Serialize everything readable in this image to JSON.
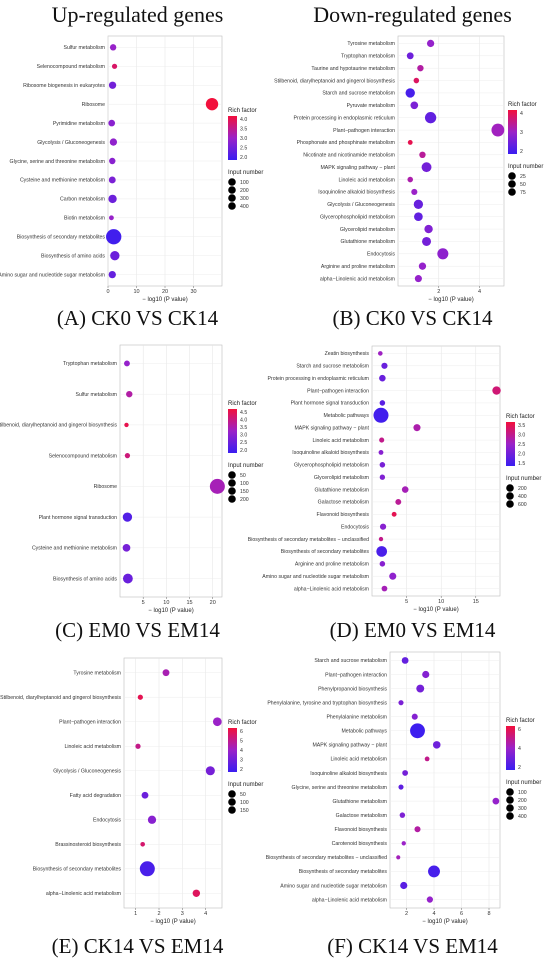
{
  "titles": {
    "left": "Up-regulated genes",
    "right": "Down-regulated genes"
  },
  "common": {
    "xlabel": "− log10 (P value)",
    "rich_legend_title": "Rich factor",
    "size_legend_title": "Input number",
    "colors": {
      "low": "#3a1ef0",
      "mid": "#9b22c8",
      "high": "#f2103c"
    }
  },
  "chart_data": [
    {
      "type": "scatter",
      "panel_label": "(A) CK0 VS CK14",
      "xlabel": "− log10 (P value)",
      "xlim": [
        0,
        40
      ],
      "xticks": [
        0,
        10,
        20,
        30
      ],
      "rich_range": [
        1.5,
        4.2
      ],
      "rich_ticks": [
        "4.0",
        "3.5",
        "3.0",
        "2.5",
        "2.0"
      ],
      "size_ticks": [
        100,
        200,
        300,
        400
      ],
      "size_max": 400,
      "categories": [
        "Sulfur metabolism",
        "Selenocompound metabolism",
        "Ribosome biogenesis in eukaryotes",
        "Ribosome",
        "Pyrimidine metabolism",
        "Glycolysis / Gluconeogenesis",
        "Glycine, serine and threonine metabolism",
        "Cysteine and methionine metabolism",
        "Carbon metabolism",
        "Biotin metabolism",
        "Biosynthesis of secondary metabolites",
        "Biosynthesis of amino acids",
        "Amino sugar and nucleotide sugar metabolism"
      ],
      "x": [
        1.8,
        2.3,
        1.6,
        36.5,
        1.3,
        1.9,
        1.5,
        1.5,
        1.6,
        1.2,
        2.0,
        2.4,
        1.5
      ],
      "rich": [
        2.8,
        3.8,
        2.3,
        4.2,
        2.6,
        2.7,
        2.6,
        2.4,
        2.2,
        2.8,
        1.6,
        2.2,
        2.1
      ],
      "count": [
        40,
        20,
        60,
        250,
        45,
        60,
        40,
        50,
        90,
        15,
        420,
        120,
        60
      ]
    },
    {
      "type": "scatter",
      "panel_label": "(B) CK0 VS CK14",
      "xlabel": "− log10 (P value)",
      "xlim": [
        0,
        5.2
      ],
      "xticks": [
        2,
        4
      ],
      "rich_range": [
        1.6,
        4.6
      ],
      "rich_ticks": [
        "4",
        "3",
        "2"
      ],
      "size_ticks": [
        25,
        50,
        75
      ],
      "size_max": 80,
      "categories": [
        "Tyrosine metabolism",
        "Tryptophan metabolism",
        "Taurine and hypotaurine metabolism",
        "Stilbenoid, diarylheptanoid and gingerol biosynthesis",
        "Starch and sucrose metabolism",
        "Pyruvate metabolism",
        "Protein processing in endoplasmic reticulum",
        "Plant−pathogen interaction",
        "Phosphonate and phosphinate metabolism",
        "Nicotinate and nicotinamide metabolism",
        "MAPK signaling pathway − plant",
        "Linoleic acid metabolism",
        "Isoquinoline alkaloid biosynthesis",
        "Glycolysis / Gluconeogenesis",
        "Glycerophospholipid metabolism",
        "Glycerolipid metabolism",
        "Glutathione metabolism",
        "Endocytosis",
        "Arginine and proline metabolism",
        "alpha−Linolenic acid metabolism"
      ],
      "x": [
        1.6,
        0.6,
        1.1,
        0.9,
        0.6,
        0.8,
        1.6,
        4.9,
        0.6,
        1.2,
        1.4,
        0.6,
        0.8,
        1.0,
        1.0,
        1.5,
        1.4,
        2.2,
        1.2,
        1.0
      ],
      "rich": [
        3.0,
        2.4,
        3.5,
        4.2,
        1.8,
        2.6,
        2.2,
        3.2,
        4.4,
        3.6,
        2.5,
        3.4,
        3.1,
        2.3,
        2.2,
        2.7,
        2.5,
        2.9,
        3.0,
        3.0
      ],
      "count": [
        12,
        10,
        8,
        5,
        25,
        14,
        40,
        55,
        3,
        8,
        28,
        5,
        7,
        24,
        20,
        18,
        22,
        38,
        12,
        11
      ]
    },
    {
      "type": "scatter",
      "panel_label": "(C) EM0 VS EM14",
      "xlabel": "− log10 (P value)",
      "xlim": [
        0,
        22
      ],
      "xticks": [
        5,
        10,
        15,
        20
      ],
      "rich_range": [
        1.5,
        4.7
      ],
      "rich_ticks": [
        "4.5",
        "4.0",
        "3.5",
        "3.0",
        "2.5",
        "2.0"
      ],
      "size_ticks": [
        50,
        100,
        150,
        200
      ],
      "size_max": 200,
      "categories": [
        "Tryptophan metabolism",
        "Sulfur metabolism",
        "Stilbenoid, diarylheptanoid and gingerol biosynthesis",
        "Selenocompound metabolism",
        "Ribosome",
        "Plant hormone signal transduction",
        "Cysteine and methionine metabolism",
        "Biosynthesis of amino acids"
      ],
      "x": [
        1.5,
        2.0,
        1.4,
        1.6,
        21.0,
        1.6,
        1.4,
        1.7
      ],
      "rich": [
        3.0,
        3.5,
        4.5,
        4.0,
        3.3,
        1.9,
        2.5,
        2.3
      ],
      "count": [
        15,
        20,
        5,
        10,
        200,
        60,
        35,
        70
      ]
    },
    {
      "type": "scatter",
      "panel_label": "(D) EM0 VS EM14",
      "xlabel": "− log10 (P value)",
      "xlim": [
        0,
        18.5
      ],
      "xticks": [
        5,
        10,
        15
      ],
      "rich_range": [
        1.2,
        3.7
      ],
      "rich_ticks": [
        "3.5",
        "3.0",
        "2.5",
        "2.0",
        "1.5"
      ],
      "size_ticks": [
        200,
        400,
        600
      ],
      "size_max": 650,
      "categories": [
        "Zeatin biosynthesis",
        "Starch and sucrose metabolism",
        "Protein processing in endoplasmic reticulum",
        "Plant−pathogen interaction",
        "Plant hormone signal transduction",
        "Metabolic pathways",
        "MAPK signaling pathway − plant",
        "Linoleic acid metabolism",
        "Isoquinoline alkaloid biosynthesis",
        "Glycerophospholipid metabolism",
        "Glycerolipid metabolism",
        "Glutathione metabolism",
        "Galactose metabolism",
        "Flavonoid biosynthesis",
        "Endocytosis",
        "Biosynthesis of secondary metabolites − unclassified",
        "Biosynthesis of secondary metabolites",
        "Arginine and proline metabolism",
        "Amino sugar and nucleotide sugar metabolism",
        "alpha−Linolenic acid metabolism"
      ],
      "x": [
        1.2,
        1.8,
        1.5,
        18.0,
        1.5,
        1.3,
        6.5,
        1.4,
        1.3,
        1.5,
        1.5,
        4.8,
        3.8,
        3.2,
        1.6,
        1.3,
        1.4,
        1.5,
        3.0,
        1.8
      ],
      "rich": [
        2.5,
        1.8,
        1.8,
        3.2,
        1.6,
        1.3,
        2.7,
        3.0,
        2.2,
        2.0,
        2.1,
        2.6,
        2.9,
        3.5,
        2.2,
        3.0,
        1.4,
        2.2,
        2.3,
        2.6
      ],
      "count": [
        20,
        60,
        70,
        150,
        40,
        650,
        90,
        30,
        25,
        40,
        35,
        70,
        50,
        25,
        60,
        15,
        280,
        40,
        90,
        45
      ]
    },
    {
      "type": "scatter",
      "panel_label": "(E) CK14 VS EM14",
      "xlabel": "− log10 (P value)",
      "xlim": [
        0.5,
        4.7
      ],
      "xticks": [
        1,
        2,
        3,
        4
      ],
      "rich_range": [
        1.2,
        6.4
      ],
      "rich_ticks": [
        "6",
        "5",
        "4",
        "3",
        "2"
      ],
      "size_ticks": [
        50,
        100,
        150
      ],
      "size_max": 160,
      "categories": [
        "Tyrosine metabolism",
        "Stilbenoid, diarylheptanoid and gingerol biosynthesis",
        "Plant−pathogen interaction",
        "Linoleic acid metabolism",
        "Glycolysis / Gluconeogenesis",
        "Fatty acid degradation",
        "Endocytosis",
        "Brassinosteroid biosynthesis",
        "Biosynthesis of secondary metabolites",
        "alpha−Linolenic acid metabolism"
      ],
      "x": [
        2.3,
        1.2,
        4.5,
        1.1,
        4.2,
        1.4,
        1.7,
        1.3,
        1.5,
        3.6
      ],
      "rich": [
        4.2,
        6.0,
        3.8,
        5.0,
        2.8,
        2.5,
        3.3,
        5.5,
        1.6,
        5.8
      ],
      "count": [
        20,
        8,
        40,
        8,
        45,
        20,
        35,
        5,
        160,
        25
      ]
    },
    {
      "type": "scatter",
      "panel_label": "(F) CK14 VS EM14",
      "xlabel": "− log10 (P value)",
      "xlim": [
        0.8,
        8.8
      ],
      "xticks": [
        2,
        4,
        6,
        8
      ],
      "rich_range": [
        1.2,
        7.2
      ],
      "rich_ticks": [
        "6",
        "4",
        "2"
      ],
      "size_ticks": [
        100,
        200,
        300,
        400
      ],
      "size_max": 420,
      "categories": [
        "Starch and sucrose metabolism",
        "Plant−pathogen interaction",
        "Phenylpropanoid biosynthesis",
        "Phenylalanine, tyrosine and tryptophan biosynthesis",
        "Phenylalanine metabolism",
        "Metabolic pathways",
        "MAPK signaling pathway − plant",
        "Linoleic acid metabolism",
        "Isoquinoline alkaloid biosynthesis",
        "Glycine, serine and threonine metabolism",
        "Glutathione metabolism",
        "Galactose metabolism",
        "Flavonoid biosynthesis",
        "Carotenoid biosynthesis",
        "Biosynthesis of secondary metabolites − unclassified",
        "Biosynthesis of secondary metabolites",
        "Amino sugar and nucleotide sugar metabolism",
        "alpha−Linolenic acid metabolism"
      ],
      "x": [
        1.9,
        3.4,
        3.0,
        1.6,
        2.6,
        2.8,
        4.2,
        3.5,
        1.9,
        1.6,
        8.5,
        1.7,
        2.8,
        1.8,
        1.4,
        4.0,
        1.8,
        3.7
      ],
      "rich": [
        2.5,
        3.5,
        3.0,
        3.2,
        3.5,
        1.3,
        2.8,
        5.5,
        3.0,
        2.3,
        4.0,
        3.3,
        5.0,
        4.2,
        4.5,
        1.6,
        2.2,
        4.0
      ],
      "count": [
        50,
        60,
        80,
        20,
        35,
        410,
        70,
        15,
        30,
        20,
        50,
        25,
        35,
        10,
        8,
        240,
        60,
        40
      ]
    }
  ]
}
